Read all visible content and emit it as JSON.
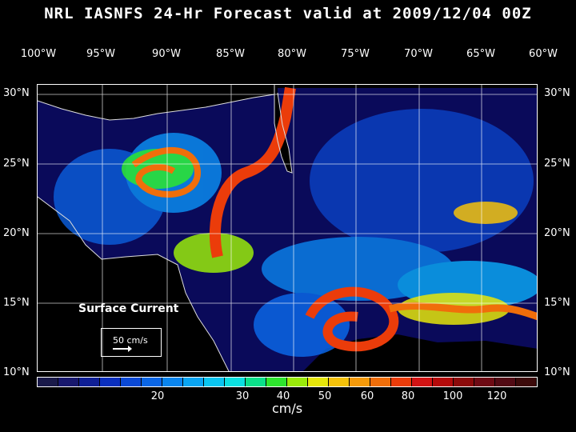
{
  "title": "NRL IASNFS  24-Hr Forecast valid at 2009/12/04 00Z",
  "lon_labels": [
    "100°W",
    "95°W",
    "90°W",
    "85°W",
    "80°W",
    "75°W",
    "70°W",
    "65°W",
    "60°W"
  ],
  "lat_labels": [
    "30°N",
    "25°N",
    "20°N",
    "15°N",
    "10°N"
  ],
  "legend": {
    "title": "Surface Current",
    "reference": "50 cm/s"
  },
  "colorbar": {
    "ticks": [
      "20",
      "30",
      "40",
      "50",
      "60",
      "80",
      "100",
      "120"
    ],
    "unit": "cm/s",
    "colors": [
      "#1a1a4a",
      "#18186e",
      "#0f1f96",
      "#0a2fbe",
      "#0a49d6",
      "#0a66e6",
      "#0a85ee",
      "#0aa5f2",
      "#0ac5f0",
      "#0ae0e0",
      "#0ae08a",
      "#2ee62e",
      "#9aeb0a",
      "#e6e60a",
      "#f5c20a",
      "#f59a0a",
      "#f06e0a",
      "#eb3c0a",
      "#d21414",
      "#b40a0a",
      "#8c0a0a",
      "#6e0a14",
      "#520a14",
      "#3c0a0a"
    ]
  }
}
